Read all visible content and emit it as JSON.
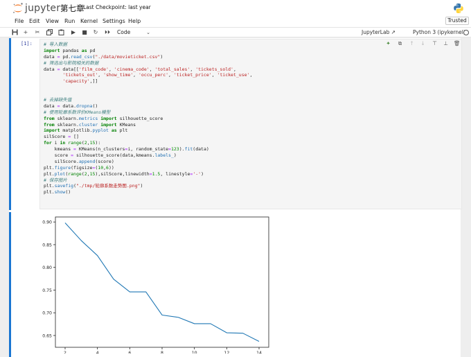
{
  "header": {
    "logo_text": "jupyter",
    "notebook_title": "第七章",
    "checkpoint": "Last Checkpoint: last year"
  },
  "menu": {
    "items": [
      "File",
      "Edit",
      "View",
      "Run",
      "Kernel",
      "Settings",
      "Help"
    ],
    "trusted": "Trusted"
  },
  "toolbar": {
    "cell_type": "Code",
    "jupyterlab_link": "JupyterLab",
    "kernel": "Python 3 (ipykernel)"
  },
  "cell": {
    "prompt": "[1]:",
    "code_lines": [
      "# 导入数据",
      "import pandas as pd",
      "data = pd.read_csv(\"./data/movieticket.csv\")",
      "# 筛选出与影院相关的数据",
      "data = data[['film_code', 'cinema_code', 'total_sales', 'tickets_sold',",
      "       'tickets_out', 'show_time', 'occu_perc', 'ticket_price', 'ticket_use',",
      "       'capacity',]]",
      "",
      "",
      "# 去掉缺失值",
      "data = data.dropna()",
      "# 使用轮廓系数评价KMeans模型",
      "from sklearn.metrics import silhouette_score",
      "from sklearn.cluster import KMeans",
      "import matplotlib.pyplot as plt",
      "silScore = []",
      "for i in range(2,15):",
      "    kmeans = KMeans(n_clusters=i, random_state=123).fit(data)",
      "    score = silhouette_score(data,kmeans.labels_)",
      "    silScore.append(score)",
      "plt.figure(figsize=(10,6))",
      "plt.plot(range(2,15),silScore,linewidth=1.5, linestyle='-')",
      "# 保存图片",
      "plt.savefig(\"./tmp/轮廓系数走势图.png\")",
      "plt.show()"
    ]
  },
  "colors": {
    "line": "#1f77b4",
    "cell_bar": "#1976d2",
    "prompt": "#303f9f"
  },
  "chart_data": {
    "type": "line",
    "x": [
      2,
      3,
      4,
      5,
      6,
      7,
      8,
      9,
      10,
      11,
      12,
      13,
      14
    ],
    "series": [
      {
        "values": [
          0.898,
          0.859,
          0.826,
          0.774,
          0.746,
          0.746,
          0.695,
          0.69,
          0.676,
          0.676,
          0.656,
          0.655,
          0.637
        ]
      }
    ],
    "xticks": [
      "2",
      "4",
      "6",
      "8",
      "10",
      "12",
      "14"
    ],
    "yticks": [
      "0.65",
      "0.70",
      "0.75",
      "0.80",
      "0.85",
      "0.90"
    ],
    "xlim": [
      1.4,
      14.6
    ],
    "ylim": [
      0.624,
      0.911
    ],
    "title": "",
    "xlabel": "",
    "ylabel": "",
    "grid": false
  }
}
